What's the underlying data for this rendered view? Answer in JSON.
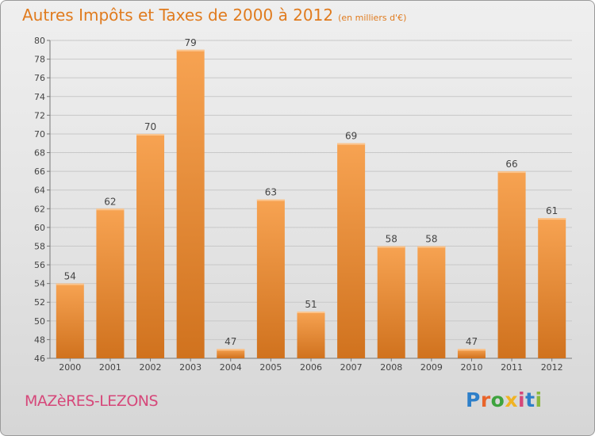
{
  "header": {
    "title": "Autres Impôts et Taxes de 2000 à 2012",
    "unit": "(en milliers d'€)"
  },
  "footer": {
    "commune": "MAZèRES-LEZONS",
    "logo": "Proxiti",
    "logo_colors": [
      "#2e7fc9",
      "#e8642a",
      "#3ea33e",
      "#f0b323",
      "#d6487a",
      "#2e7fc9",
      "#8ab83d"
    ]
  },
  "colors": {
    "bar_light": "#f7a352",
    "bar_dark": "#d0721e",
    "title": "#e07b1e",
    "grid": "#c8c8c8"
  },
  "chart_data": {
    "type": "bar",
    "categories": [
      "2000",
      "2001",
      "2002",
      "2003",
      "2004",
      "2005",
      "2006",
      "2007",
      "2008",
      "2009",
      "2010",
      "2011",
      "2012"
    ],
    "values": [
      54,
      62,
      70,
      79,
      47,
      63,
      51,
      69,
      58,
      58,
      47,
      66,
      61
    ],
    "ylim": [
      46,
      80
    ],
    "yticks": [
      46,
      48,
      50,
      52,
      54,
      56,
      58,
      60,
      62,
      64,
      66,
      68,
      70,
      72,
      74,
      76,
      78,
      80
    ],
    "grid": true,
    "title": "Autres Impôts et Taxes de 2000 à 2012",
    "xlabel": "",
    "ylabel": ""
  }
}
